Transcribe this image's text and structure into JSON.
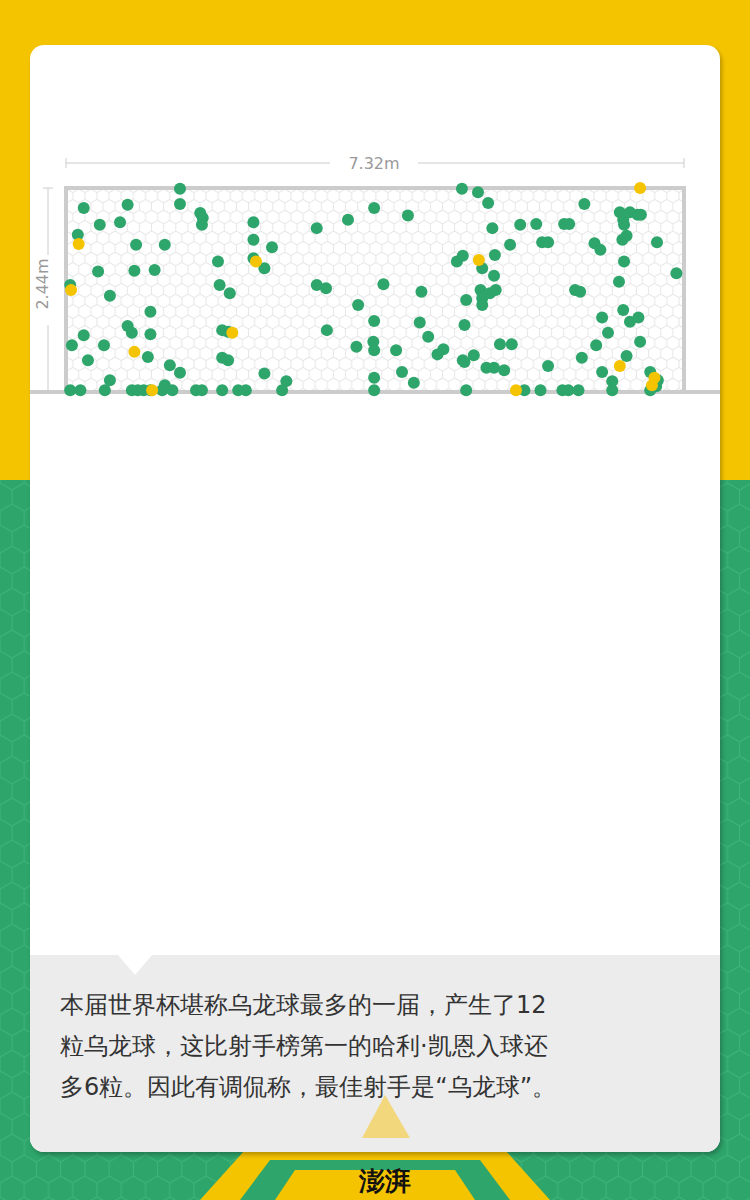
{
  "chart_data": {
    "type": "scatter",
    "width_label": "7.32m",
    "height_label": "2.44m",
    "xlim": [
      0,
      7.32
    ],
    "ylim": [
      0,
      2.44
    ],
    "tick_labels": false,
    "marker": "circle",
    "series": [
      {
        "color": "#2ea56b",
        "points": [
          [
            0.21,
            2.2
          ],
          [
            0.73,
            2.24
          ],
          [
            1.35,
            2.43
          ],
          [
            1.35,
            2.25
          ],
          [
            1.59,
            2.14
          ],
          [
            1.62,
            2.08
          ],
          [
            1.61,
            2.0
          ],
          [
            0.14,
            1.88
          ],
          [
            0.4,
            2.0
          ],
          [
            0.64,
            2.03
          ],
          [
            0.83,
            1.76
          ],
          [
            1.17,
            1.76
          ],
          [
            2.22,
            2.03
          ],
          [
            2.22,
            1.82
          ],
          [
            2.44,
            1.73
          ],
          [
            1.8,
            1.56
          ],
          [
            2.22,
            1.6
          ],
          [
            2.35,
            1.48
          ],
          [
            0.38,
            1.44
          ],
          [
            0.81,
            1.45
          ],
          [
            1.05,
            1.46
          ],
          [
            0.05,
            1.28
          ],
          [
            0.52,
            1.15
          ],
          [
            1.82,
            1.28
          ],
          [
            1.94,
            1.18
          ],
          [
            1.0,
            0.96
          ],
          [
            0.73,
            0.79
          ],
          [
            0.78,
            0.71
          ],
          [
            1.0,
            0.69
          ],
          [
            0.21,
            0.68
          ],
          [
            0.07,
            0.56
          ],
          [
            0.45,
            0.56
          ],
          [
            1.85,
            0.74
          ],
          [
            1.92,
            0.72
          ],
          [
            0.97,
            0.42
          ],
          [
            0.26,
            0.38
          ],
          [
            1.23,
            0.32
          ],
          [
            1.35,
            0.23
          ],
          [
            1.85,
            0.41
          ],
          [
            1.92,
            0.38
          ],
          [
            2.35,
            0.22
          ],
          [
            2.61,
            0.13
          ],
          [
            0.52,
            0.14
          ],
          [
            1.17,
            0.08
          ],
          [
            0.05,
            0.02
          ],
          [
            0.17,
            0.02
          ],
          [
            0.46,
            0.02
          ],
          [
            0.78,
            0.02
          ],
          [
            0.85,
            0.02
          ],
          [
            0.92,
            0.02
          ],
          [
            1.0,
            0.02
          ],
          [
            1.14,
            0.02
          ],
          [
            1.26,
            0.02
          ],
          [
            1.54,
            0.02
          ],
          [
            1.61,
            0.02
          ],
          [
            1.85,
            0.02
          ],
          [
            2.04,
            0.02
          ],
          [
            2.13,
            0.02
          ],
          [
            2.56,
            0.02
          ],
          [
            2.97,
            1.96
          ],
          [
            3.34,
            2.06
          ],
          [
            3.65,
            2.2
          ],
          [
            4.05,
            2.11
          ],
          [
            2.97,
            1.28
          ],
          [
            3.08,
            1.24
          ],
          [
            3.76,
            1.29
          ],
          [
            3.46,
            1.04
          ],
          [
            4.21,
            1.2
          ],
          [
            3.65,
            0.85
          ],
          [
            3.09,
            0.74
          ],
          [
            3.44,
            0.54
          ],
          [
            3.64,
            0.6
          ],
          [
            3.65,
            0.5
          ],
          [
            3.91,
            0.5
          ],
          [
            4.19,
            0.83
          ],
          [
            4.29,
            0.66
          ],
          [
            4.4,
            0.45
          ],
          [
            4.47,
            0.51
          ],
          [
            4.74,
            1.1
          ],
          [
            4.72,
            0.8
          ],
          [
            4.7,
            0.38
          ],
          [
            3.65,
            0.17
          ],
          [
            3.98,
            0.24
          ],
          [
            4.12,
            0.11
          ],
          [
            3.65,
            0.02
          ],
          [
            4.69,
            2.43
          ],
          [
            4.88,
            2.39
          ],
          [
            5.0,
            2.26
          ],
          [
            5.05,
            1.96
          ],
          [
            5.38,
            2.0
          ],
          [
            4.63,
            1.56
          ],
          [
            4.7,
            1.63
          ],
          [
            4.93,
            1.48
          ],
          [
            5.26,
            1.76
          ],
          [
            5.08,
            1.64
          ],
          [
            4.91,
            1.22
          ],
          [
            4.93,
            1.12
          ],
          [
            4.93,
            1.04
          ],
          [
            5.02,
            1.18
          ],
          [
            5.07,
            1.39
          ],
          [
            5.09,
            1.22
          ],
          [
            5.57,
            2.01
          ],
          [
            5.64,
            1.79
          ],
          [
            5.71,
            1.79
          ],
          [
            5.9,
            2.01
          ],
          [
            5.96,
            2.01
          ],
          [
            6.14,
            2.25
          ],
          [
            6.26,
            1.78
          ],
          [
            6.33,
            1.7
          ],
          [
            6.56,
            2.15
          ],
          [
            6.6,
            2.06
          ],
          [
            6.68,
            2.15
          ],
          [
            6.77,
            2.12
          ],
          [
            6.81,
            2.12
          ],
          [
            6.61,
            2.0
          ],
          [
            6.59,
            1.82
          ],
          [
            6.64,
            1.87
          ],
          [
            7.0,
            1.79
          ],
          [
            6.61,
            1.56
          ],
          [
            6.03,
            1.22
          ],
          [
            6.09,
            1.2
          ],
          [
            6.55,
            1.32
          ],
          [
            7.23,
            1.42
          ],
          [
            6.6,
            0.98
          ],
          [
            6.35,
            0.89
          ],
          [
            6.68,
            0.84
          ],
          [
            6.78,
            0.89
          ],
          [
            6.42,
            0.71
          ],
          [
            6.8,
            0.6
          ],
          [
            6.28,
            0.56
          ],
          [
            6.11,
            0.41
          ],
          [
            5.71,
            0.31
          ],
          [
            5.28,
            0.57
          ],
          [
            5.14,
            0.57
          ],
          [
            4.98,
            0.29
          ],
          [
            5.07,
            0.29
          ],
          [
            4.83,
            0.44
          ],
          [
            4.72,
            0.36
          ],
          [
            5.19,
            0.26
          ],
          [
            6.35,
            0.24
          ],
          [
            6.64,
            0.43
          ],
          [
            6.92,
            0.24
          ],
          [
            7.01,
            0.14
          ],
          [
            6.99,
            0.07
          ],
          [
            6.47,
            0.13
          ],
          [
            4.74,
            0.02
          ],
          [
            5.43,
            0.02
          ],
          [
            5.62,
            0.02
          ],
          [
            5.88,
            0.02
          ],
          [
            5.95,
            0.02
          ],
          [
            6.07,
            0.02
          ],
          [
            6.47,
            0.02
          ],
          [
            6.92,
            0.02
          ]
        ]
      },
      {
        "color": "#f5c400",
        "points": [
          [
            6.8,
            2.44
          ],
          [
            0.15,
            1.77
          ],
          [
            0.06,
            1.22
          ],
          [
            2.25,
            1.56
          ],
          [
            4.89,
            1.58
          ],
          [
            0.81,
            0.48
          ],
          [
            1.97,
            0.71
          ],
          [
            6.56,
            0.31
          ],
          [
            6.94,
            0.08
          ],
          [
            5.33,
            0.02
          ],
          [
            1.02,
            0.02
          ],
          [
            6.97,
            0.17
          ]
        ]
      }
    ]
  },
  "caption": [
    "本届世界杯堪称乌龙球最多的一届，产生了12",
    "粒乌龙球，这比射手榜第一的哈利·凯恩入球还",
    "多6粒。因此有调侃称，最佳射手是“乌龙球”。"
  ],
  "logo": "澎湃"
}
